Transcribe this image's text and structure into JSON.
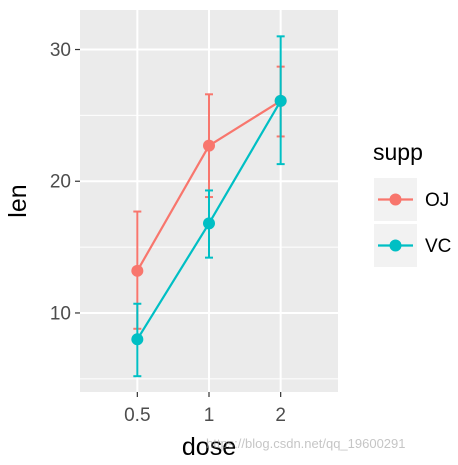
{
  "chart_data": {
    "type": "line",
    "xlabel": "dose",
    "ylabel": "len",
    "categories": [
      "0.5",
      "1",
      "2"
    ],
    "y_ticks": [
      "10",
      "20",
      "30"
    ],
    "ylim": [
      4,
      33
    ],
    "grid": true,
    "legend": {
      "title": "supp",
      "placement": "right"
    },
    "series": [
      {
        "name": "OJ",
        "color": "#f8766d",
        "values": [
          13.2,
          22.7,
          26.1
        ],
        "error_low": [
          8.8,
          18.8,
          23.4
        ],
        "error_high": [
          17.7,
          26.6,
          28.7
        ]
      },
      {
        "name": "VC",
        "color": "#00bfc4",
        "values": [
          8.0,
          16.8,
          26.1
        ],
        "error_low": [
          5.2,
          14.2,
          21.3
        ],
        "error_high": [
          10.7,
          19.3,
          31.0
        ]
      }
    ]
  },
  "watermark": "https://blog.csdn.net/qq_19600291"
}
